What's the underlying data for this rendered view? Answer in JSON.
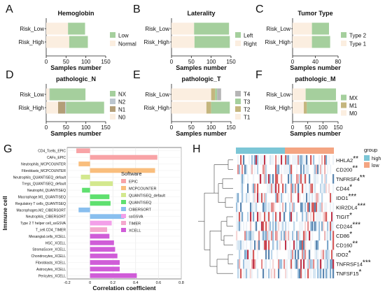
{
  "colors": {
    "normal": "#fbeee0",
    "low_lvl": "#a5cf9d",
    "left": "#a5cf9d",
    "right": "#fbeee0",
    "type1": "#fbeee0",
    "type2": "#a5cf9d",
    "nx": "#a5cf9d",
    "n2": "#bcc6cf",
    "n1": "#b39e78",
    "n0": "#fbeee0",
    "t4": "#b5b5b5",
    "t3": "#a5cf9d",
    "t2": "#c4b67e",
    "t1": "#fbeee0",
    "mx": "#a5cf9d",
    "m1": "#c4b67e",
    "m0": "#fbeee0",
    "hm_high": "#7cc6d6",
    "hm_low": "#f4a582"
  },
  "chart_data": [
    {
      "panel": "A",
      "type": "bar",
      "orientation": "horizontal",
      "stacked": true,
      "title": "Hemoglobin",
      "xlabel": "Samples number",
      "ylabel": "",
      "categories": [
        "Risk_Low",
        "Risk_High"
      ],
      "xlim": [
        0,
        150
      ],
      "ticks": [
        "0",
        "50",
        "100",
        "150"
      ],
      "legend_position": "right",
      "series": [
        {
          "name": "Normal",
          "color": "#fbeee0",
          "values": [
            55,
            58
          ]
        },
        {
          "name": "Low",
          "color": "#a5cf9d",
          "values": [
            43,
            47
          ]
        }
      ]
    },
    {
      "panel": "B",
      "type": "bar",
      "orientation": "horizontal",
      "stacked": true,
      "title": "Laterality",
      "xlabel": "Samples number",
      "ylabel": "",
      "categories": [
        "Risk_Low",
        "Risk_High"
      ],
      "xlim": [
        0,
        150
      ],
      "ticks": [
        "0",
        "50",
        "100",
        "150"
      ],
      "legend_position": "right",
      "series": [
        {
          "name": "Right",
          "color": "#fbeee0",
          "values": [
            57,
            58
          ]
        },
        {
          "name": "Left",
          "color": "#a5cf9d",
          "values": [
            88,
            89
          ]
        }
      ]
    },
    {
      "panel": "C",
      "type": "bar",
      "orientation": "horizontal",
      "stacked": true,
      "title": "Tumor Type",
      "xlabel": "Samples number",
      "ylabel": "",
      "categories": [
        "Risk_Low",
        "Risk_High"
      ],
      "xlim": [
        0,
        80
      ],
      "ticks": [
        "0",
        "40",
        "80"
      ],
      "legend_position": "right",
      "series": [
        {
          "name": "Type 1",
          "color": "#fbeee0",
          "values": [
            34,
            34
          ]
        },
        {
          "name": "Type 2",
          "color": "#a5cf9d",
          "values": [
            30,
            32
          ]
        }
      ]
    },
    {
      "panel": "D",
      "type": "bar",
      "orientation": "horizontal",
      "stacked": true,
      "title": "pathologic_N",
      "xlabel": "Samples number",
      "ylabel": "",
      "categories": [
        "Risk_Low",
        "Risk_High"
      ],
      "xlim": [
        0,
        150
      ],
      "ticks": [
        "0",
        "50",
        "100",
        "150"
      ],
      "legend_position": "right",
      "series": [
        {
          "name": "N0",
          "color": "#fbeee0",
          "values": [
            8,
            30
          ]
        },
        {
          "name": "N1",
          "color": "#b39e78",
          "values": [
            0,
            18
          ]
        },
        {
          "name": "N2",
          "color": "#bcc6cf",
          "values": [
            1,
            2
          ]
        },
        {
          "name": "NX",
          "color": "#a5cf9d",
          "values": [
            90,
            96
          ]
        }
      ]
    },
    {
      "panel": "E",
      "type": "bar",
      "orientation": "horizontal",
      "stacked": true,
      "title": "pathologic_T",
      "xlabel": "Samples number",
      "ylabel": "",
      "categories": [
        "Risk_Low",
        "Risk_High"
      ],
      "xlim": [
        0,
        150
      ],
      "ticks": [
        "0",
        "50",
        "100",
        "150"
      ],
      "legend_position": "right",
      "series": [
        {
          "name": "T1",
          "color": "#fbeee0",
          "values": [
            100,
            88
          ]
        },
        {
          "name": "T2",
          "color": "#c4b67e",
          "values": [
            10,
            12
          ]
        },
        {
          "name": "T3",
          "color": "#a5cf9d",
          "values": [
            5,
            47
          ]
        },
        {
          "name": "T4",
          "color": "#b5b5b5",
          "values": [
            10,
            0
          ]
        }
      ]
    },
    {
      "panel": "F",
      "type": "bar",
      "orientation": "horizontal",
      "stacked": true,
      "title": "pathologic_M",
      "xlabel": "Samples number",
      "ylabel": "",
      "categories": [
        "Risk_Low",
        "Risk_High"
      ],
      "xlim": [
        0,
        150
      ],
      "ticks": [
        "0",
        "50",
        "100",
        "150"
      ],
      "legend_position": "right",
      "series": [
        {
          "name": "M0",
          "color": "#fbeee0",
          "values": [
            43,
            37
          ]
        },
        {
          "name": "M1",
          "color": "#c4b67e",
          "values": [
            0,
            10
          ]
        },
        {
          "name": "MX",
          "color": "#a5cf9d",
          "values": [
            100,
            101
          ]
        }
      ]
    },
    {
      "panel": "G",
      "type": "bar",
      "orientation": "horizontal",
      "title": "",
      "xlabel": "Correlation coefficient",
      "ylabel": "Immune cell",
      "xlim": [
        -0.2,
        0.8
      ],
      "ticks": [
        "-0.2",
        "0",
        "0.2",
        "0.4",
        "0.6",
        "0.8"
      ],
      "grid": true,
      "legend_title": "Software",
      "legend_position": "right",
      "software": [
        {
          "name": "EPIC",
          "color": "#f8a3a6"
        },
        {
          "name": "MCPCOUNTER",
          "color": "#f9be7d"
        },
        {
          "name": "QUANTISEQ_default",
          "color": "#d3e88e"
        },
        {
          "name": "QUANTISEQ",
          "color": "#5fe06f"
        },
        {
          "name": "CIBERSORT",
          "color": "#89bfee"
        },
        {
          "name": "ssGSVA",
          "color": "#f3a0e9"
        },
        {
          "name": "TIMER",
          "color": "#f4a8cd"
        },
        {
          "name": "XCELL",
          "color": "#d05dd8"
        }
      ],
      "bars": [
        {
          "label": "CD4_Tcells_EPIC",
          "value": -0.12,
          "software": "EPIC"
        },
        {
          "label": "CAFs_EPIC",
          "value": 0.59,
          "software": "EPIC"
        },
        {
          "label": "Neutrophils_MCPCOUNTER",
          "value": -0.1,
          "software": "MCPCOUNTER"
        },
        {
          "label": "Fibroblasts_MCPCOUNTER",
          "value": 0.57,
          "software": "MCPCOUNTER"
        },
        {
          "label": "Neutrophils_QUANTISEQ_default",
          "value": -0.08,
          "software": "QUANTISEQ_default"
        },
        {
          "label": "Tregs_QUANTISEQ_default",
          "value": 0.2,
          "software": "QUANTISEQ_default"
        },
        {
          "label": "Neutrophil_QUANTISEQ",
          "value": -0.07,
          "software": "QUANTISEQ"
        },
        {
          "label": "Macrophage.M1_QUANTISEQ",
          "value": 0.17,
          "software": "QUANTISEQ"
        },
        {
          "label": "Regulatory T cells_QUANTISEQ",
          "value": 0.18,
          "software": "QUANTISEQ"
        },
        {
          "label": "Macrophages.M2_CIBERSORT",
          "value": -0.1,
          "software": "CIBERSORT"
        },
        {
          "label": "Neutrophils_CIBERSORT",
          "value": 0.3,
          "software": "CIBERSORT"
        },
        {
          "label": "Type 2 T helper cell_ssGSVA",
          "value": 0.19,
          "software": "ssGSVA"
        },
        {
          "label": "T_cell.CD4_TIMER",
          "value": 0.15,
          "software": "TIMER"
        },
        {
          "label": "Mesangial.cells_XCELL",
          "value": 0.17,
          "software": "XCELL"
        },
        {
          "label": "HSC_XCELL",
          "value": 0.21,
          "software": "XCELL"
        },
        {
          "label": "StromaScore_XCELL",
          "value": 0.22,
          "software": "XCELL"
        },
        {
          "label": "Chondrocytes_XCELL",
          "value": 0.24,
          "software": "XCELL"
        },
        {
          "label": "Fibroblasts_XCELL",
          "value": 0.26,
          "software": "XCELL"
        },
        {
          "label": "Astrocytes_XCELL",
          "value": 0.26,
          "software": "XCELL"
        },
        {
          "label": "Pericytes_XCELL",
          "value": 0.41,
          "software": "XCELL"
        }
      ]
    },
    {
      "panel": "H",
      "type": "heatmap",
      "title": "",
      "xlabel": "",
      "ylabel": "",
      "legend_title": "group",
      "groups": [
        {
          "name": "high"
        },
        {
          "name": "low"
        }
      ],
      "genes": [
        {
          "name": "HHLA2",
          "sig": "**"
        },
        {
          "name": "CD200",
          "sig": "**"
        },
        {
          "name": "TNFRSF4",
          "sig": "**"
        },
        {
          "name": "CD44",
          "sig": "*"
        },
        {
          "name": "IDO1",
          "sig": "***"
        },
        {
          "name": "KIR2DL4",
          "sig": "***"
        },
        {
          "name": "TIGIT",
          "sig": "*"
        },
        {
          "name": "CD244",
          "sig": "***"
        },
        {
          "name": "CD86",
          "sig": "*"
        },
        {
          "name": "CD160",
          "sig": "**"
        },
        {
          "name": "IDO2",
          "sig": "*"
        },
        {
          "name": "TNFRSF14",
          "sig": "***"
        },
        {
          "name": "TNFSF15",
          "sig": "*"
        }
      ]
    }
  ]
}
